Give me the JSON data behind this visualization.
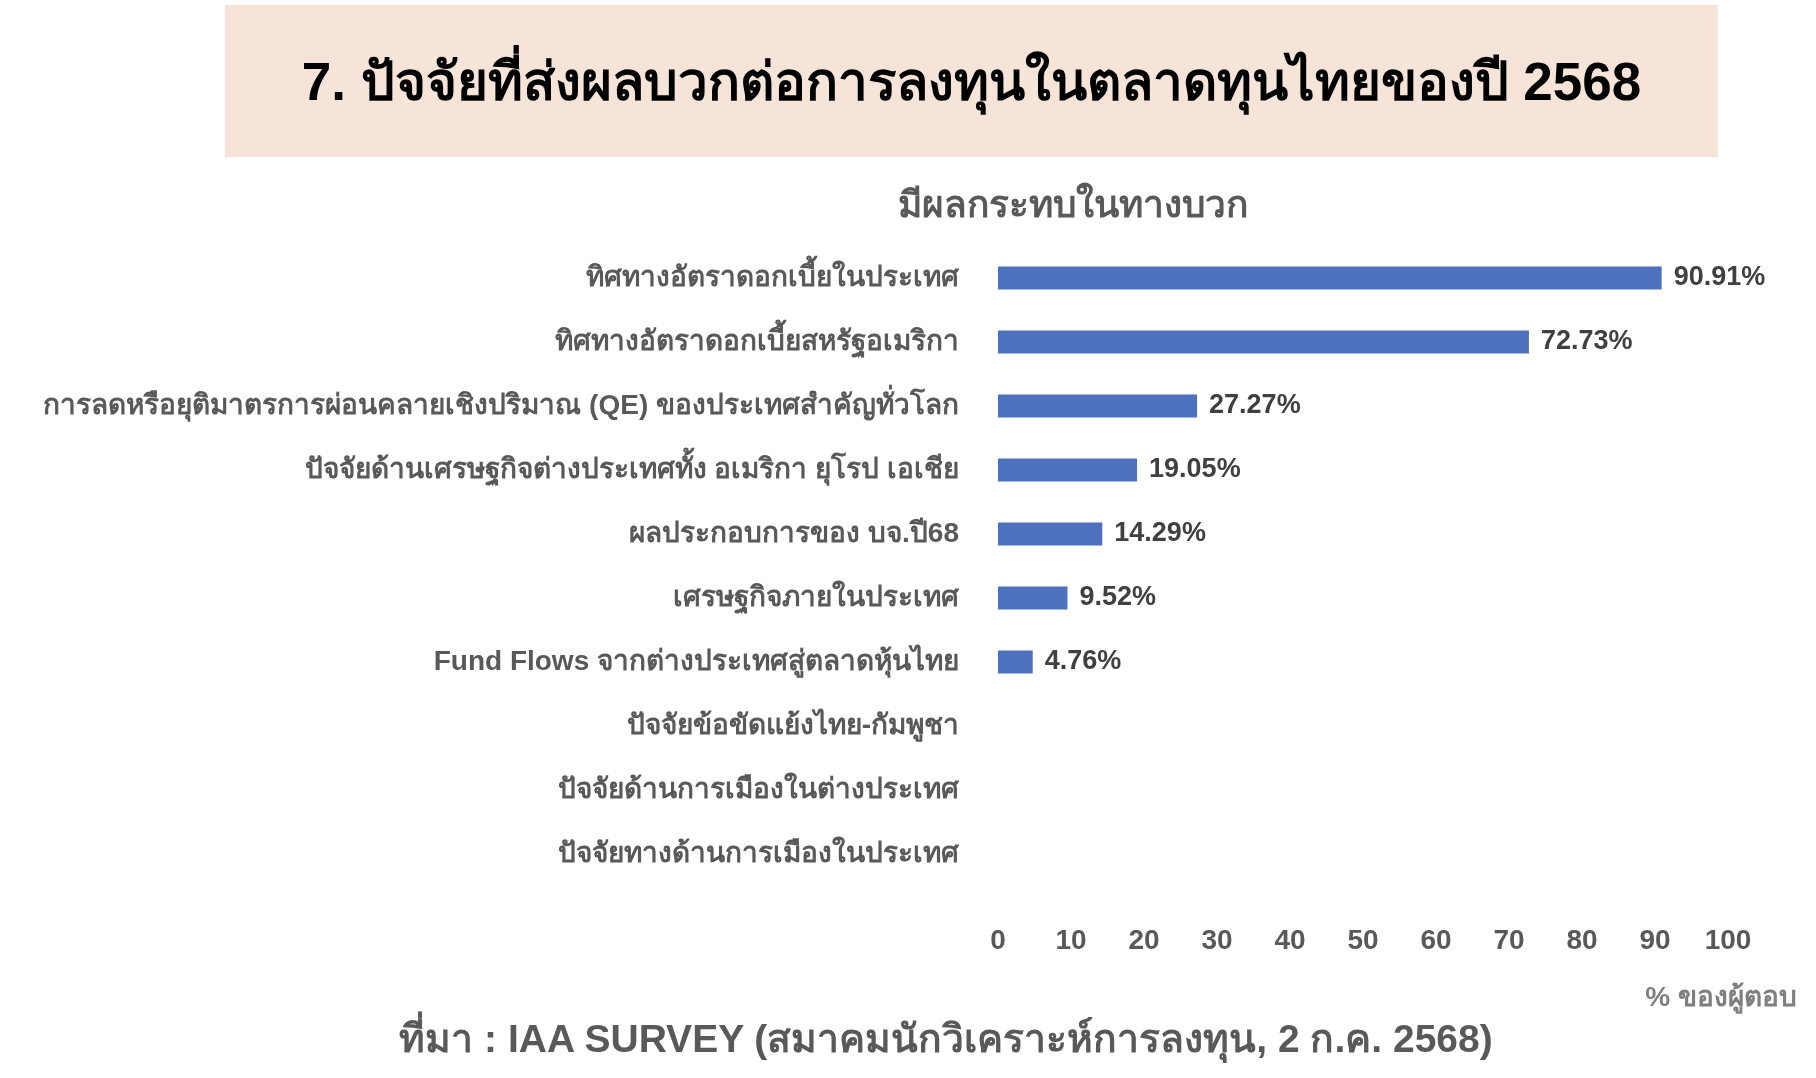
{
  "chart_data": {
    "type": "bar",
    "orientation": "horizontal",
    "title": "7. ปัจจัยที่ส่งผลบวกต่อการลงทุนในตลาดทุนไทยของปี 2568",
    "subtitle": "มีผลกระทบในทางบวก",
    "xlabel": "% ของผู้ตอบ",
    "categories": [
      "ทิศทางอัตราดอกเบี้ยในประเทศ",
      "ทิศทางอัตราดอกเบี้ยสหรัฐอเมริกา",
      "การลดหรือยุติมาตรการผ่อนคลายเชิงปริมาณ (QE) ของประเทศสำคัญทั่วโลก",
      "ปัจจัยด้านเศรษฐกิจต่างประเทศทั้ง อเมริกา ยุโรป เอเชีย",
      "ผลประกอบการของ บจ.ปี68",
      "เศรษฐกิจภายในประเทศ",
      "Fund Flows จากต่างประเทศสู่ตลาดหุ้นไทย",
      "ปัจจัยข้อขัดแย้งไทย-กัมพูชา",
      "ปัจจัยด้านการเมืองในต่างประเทศ",
      "ปัจจัยทางด้านการเมืองในประเทศ"
    ],
    "values": [
      90.91,
      72.73,
      27.27,
      19.05,
      14.29,
      9.52,
      4.76,
      0,
      0,
      0
    ],
    "value_labels": [
      "90.91%",
      "72.73%",
      "27.27%",
      "19.05%",
      "14.29%",
      "9.52%",
      "4.76%",
      null,
      null,
      null
    ],
    "color": "#4e71be",
    "xlim": [
      0,
      100
    ],
    "xticks": [
      0,
      10,
      20,
      30,
      40,
      50,
      60,
      70,
      80,
      90,
      100
    ],
    "grid": false,
    "annotations": [
      "ที่มา : IAA SURVEY (สมาคมนักวิเคราะห์การลงทุน, 2 ก.ค. 2568)"
    ]
  }
}
